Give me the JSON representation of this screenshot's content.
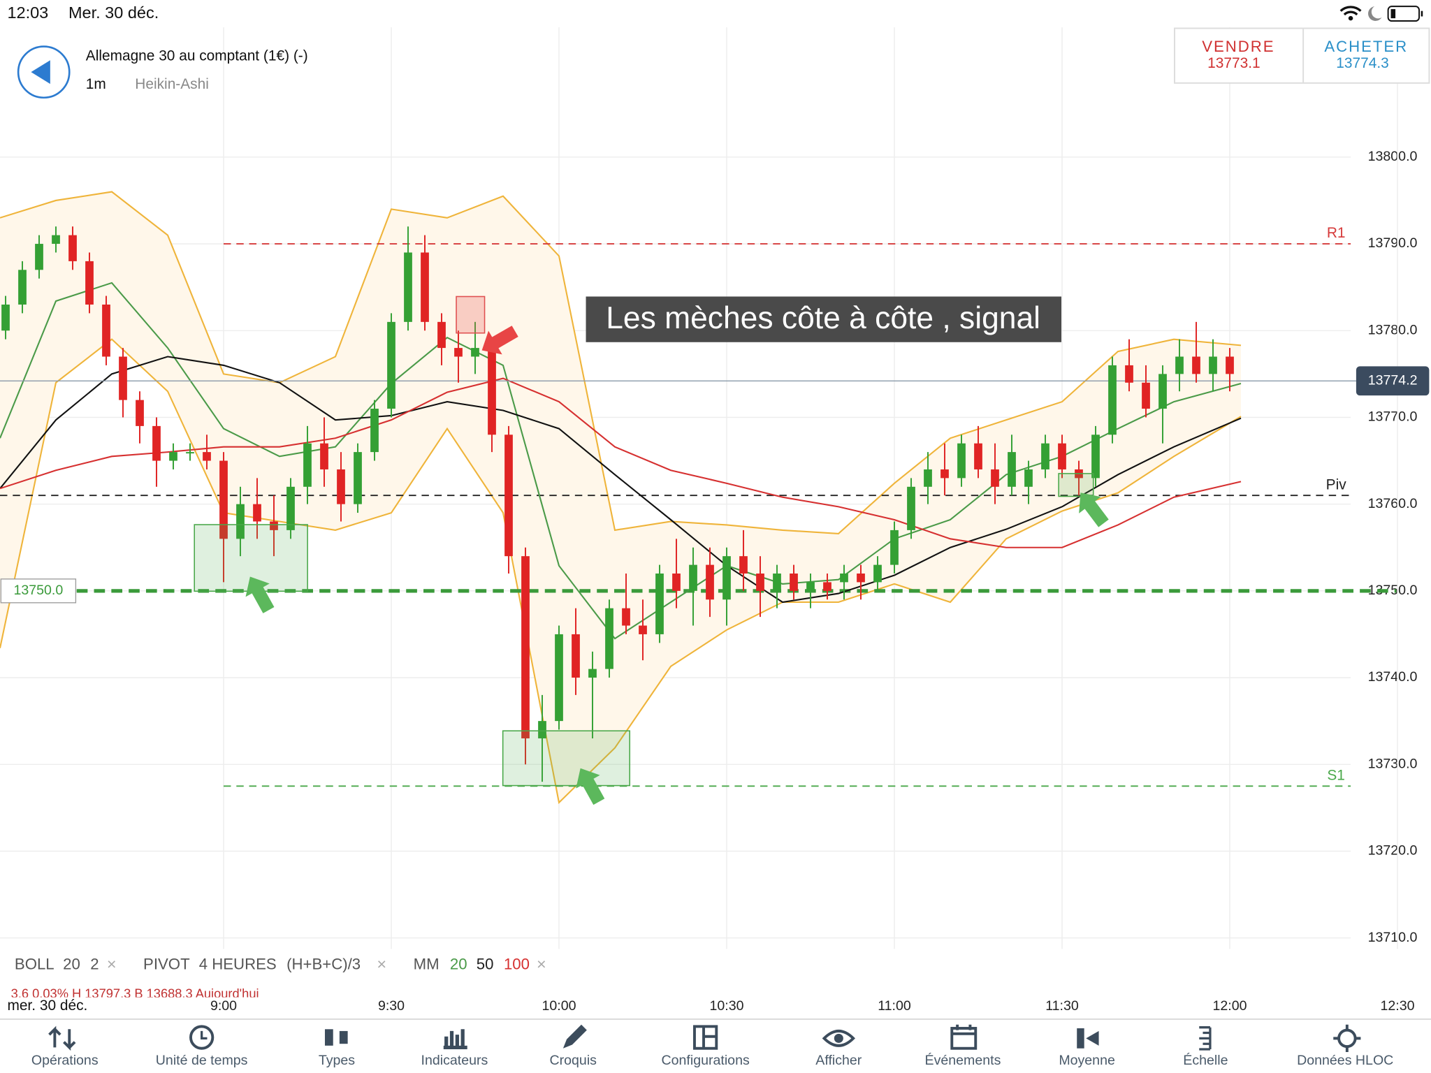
{
  "ui": {
    "status_time": "12:03",
    "status_date": "Mer. 30 déc.",
    "instrument": "Allemagne 30 au comptant (1€) (-)",
    "timeframe": "1m",
    "chart_style": "Heikin-Ashi",
    "sell_label": "VENDRE",
    "sell_price": "13773.1",
    "buy_label": "ACHETER",
    "buy_price": "13774.3",
    "annotation": "Les mèches côte à côte , signal",
    "legend": {
      "boll": "BOLL",
      "boll_period": "20",
      "boll_dev": "2",
      "pivot": "PIVOT",
      "pivot_period": "4 HEURES",
      "pivot_formula": "(H+B+C)/3",
      "mm": "MM"
    },
    "info_row": "3.6    0.03%    H 13797.3    B 13688.3    Aujourd'hui",
    "date_label": "mer. 30 déc.",
    "toolbar": [
      "Opérations",
      "Unité de temps",
      "Types",
      "Indicateurs",
      "Croquis",
      "Configurations",
      "Afficher",
      "Événements",
      "Moyenne",
      "Échelle",
      "Données HLOC"
    ]
  },
  "chart_data": {
    "type": "candlestick",
    "up_color": "#34a034",
    "down_color": "#e02424",
    "xlim": [
      500,
      756
    ],
    "xticks": [
      {
        "value": 540,
        "label": "9:00"
      },
      {
        "value": 570,
        "label": "9:30"
      },
      {
        "value": 600,
        "label": "10:00"
      },
      {
        "value": 630,
        "label": "10:30"
      },
      {
        "value": 660,
        "label": "11:00"
      },
      {
        "value": 690,
        "label": "11:30"
      },
      {
        "value": 720,
        "label": "12:00"
      },
      {
        "value": 750,
        "label": "12:30"
      }
    ],
    "ylim": [
      13704,
      13818
    ],
    "yticks": [
      {
        "value": 13800,
        "label": "13800.0"
      },
      {
        "value": 13790,
        "label": "13790.0"
      },
      {
        "value": 13780,
        "label": "13780.0"
      },
      {
        "value": 13770,
        "label": "13770.0"
      },
      {
        "value": 13760,
        "label": "13760.0"
      },
      {
        "value": 13750,
        "label": "13750.0"
      },
      {
        "value": 13740,
        "label": "13740.0"
      },
      {
        "value": 13730,
        "label": "13730.0"
      },
      {
        "value": 13720,
        "label": "13720.0"
      },
      {
        "value": 13710,
        "label": "13710.0"
      }
    ],
    "grid": true,
    "candles": {
      "t": [
        501,
        504,
        507,
        510,
        513,
        516,
        519,
        522,
        525,
        528,
        531,
        534,
        537,
        540,
        543,
        546,
        549,
        552,
        555,
        558,
        561,
        564,
        567,
        570,
        573,
        576,
        579,
        582,
        585,
        588,
        591,
        594,
        597,
        600,
        603,
        606,
        609,
        612,
        615,
        618,
        621,
        624,
        627,
        630,
        633,
        636,
        639,
        642,
        645,
        648,
        651,
        654,
        657,
        660,
        663,
        666,
        669,
        672,
        675,
        678,
        681,
        684,
        687,
        690,
        693,
        696,
        699,
        702,
        705,
        708,
        711,
        714,
        717,
        720
      ],
      "open": [
        13780,
        13783,
        13787,
        13790,
        13791,
        13788,
        13783,
        13777,
        13772,
        13769,
        13765,
        13766,
        13766,
        13765,
        13756,
        13760,
        13758,
        13757,
        13762,
        13767,
        13764,
        13760,
        13766,
        13771,
        13781,
        13789,
        13781,
        13778,
        13777,
        13778,
        13768,
        13754,
        13733,
        13735,
        13745,
        13740,
        13741,
        13748,
        13746,
        13745,
        13752,
        13750,
        13753,
        13749,
        13754,
        13752,
        13750,
        13752,
        13750,
        13751,
        13751,
        13752,
        13751,
        13753,
        13757,
        13762,
        13764,
        13763,
        13767,
        13764,
        13762,
        13762,
        13764,
        13767,
        13764,
        13763,
        13768,
        13776,
        13774,
        13771,
        13775,
        13777,
        13775,
        13777
      ],
      "high": [
        13784,
        13788,
        13791,
        13792,
        13792,
        13789,
        13784,
        13778,
        13773,
        13770,
        13767,
        13767,
        13768,
        13766,
        13762,
        13763,
        13761,
        13763,
        13769,
        13770,
        13766,
        13767,
        13772,
        13782,
        13792,
        13791,
        13782,
        13780,
        13781,
        13779,
        13769,
        13755,
        13738,
        13746,
        13748,
        13743,
        13749,
        13752,
        13749,
        13753,
        13756,
        13755,
        13755,
        13755,
        13757,
        13754,
        13753,
        13753,
        13752,
        13752,
        13753,
        13753,
        13754,
        13758,
        13763,
        13766,
        13767,
        13768,
        13769,
        13767,
        13768,
        13765,
        13768,
        13768,
        13765,
        13769,
        13777,
        13779,
        13776,
        13776,
        13779,
        13781,
        13779,
        13778
      ],
      "low": [
        13779,
        13782,
        13786,
        13789,
        13787,
        13782,
        13776,
        13770,
        13767,
        13762,
        13764,
        13765,
        13764,
        13751,
        13754,
        13756,
        13754,
        13756,
        13760,
        13762,
        13758,
        13759,
        13765,
        13770,
        13780,
        13780,
        13776,
        13774,
        13775,
        13766,
        13752,
        13730,
        13728,
        13734,
        13738,
        13733,
        13740,
        13745,
        13742,
        13744,
        13748,
        13746,
        13747,
        13746,
        13750,
        13747,
        13748,
        13749,
        13748,
        13749,
        13749,
        13749,
        13750,
        13752,
        13756,
        13760,
        13761,
        13762,
        13763,
        13760,
        13761,
        13760,
        13763,
        13763,
        13761,
        13762,
        13767,
        13773,
        13770,
        13767,
        13773,
        13774,
        13773,
        13773
      ],
      "close": [
        13783,
        13787,
        13790,
        13791,
        13788,
        13783,
        13777,
        13772,
        13769,
        13765,
        13766,
        13766,
        13765,
        13756,
        13760,
        13758,
        13757,
        13762,
        13767,
        13764,
        13760,
        13766,
        13771,
        13781,
        13789,
        13781,
        13778,
        13777,
        13778,
        13768,
        13754,
        13733,
        13735,
        13745,
        13740,
        13741,
        13748,
        13746,
        13745,
        13752,
        13750,
        13753,
        13749,
        13754,
        13752,
        13750,
        13752,
        13750,
        13751,
        13750,
        13752,
        13751,
        13753,
        13757,
        13762,
        13764,
        13763,
        13767,
        13764,
        13762,
        13766,
        13764,
        13767,
        13764,
        13763,
        13768,
        13776,
        13774,
        13771,
        13775,
        13777,
        13775,
        13777,
        13775
      ]
    },
    "line_x": [
      500,
      510,
      520,
      530,
      540,
      550,
      560,
      570,
      580,
      590,
      600,
      610,
      620,
      630,
      640,
      650,
      660,
      670,
      680,
      690,
      700,
      710,
      722
    ],
    "bollinger": {
      "color": "#efb43a",
      "fill": "#fff7ea",
      "upper": [
        13793,
        13795,
        13796,
        13791,
        13775,
        13774,
        13777,
        13794,
        13793,
        13795.5,
        13788.6,
        13757,
        13758,
        13757.6,
        13757,
        13756.6,
        13762.4,
        13767.6,
        13769.7,
        13771.8,
        13777.6,
        13779,
        13778.3
      ],
      "lower": [
        13743.4,
        13774,
        13779,
        13773,
        13759,
        13758,
        13757,
        13759,
        13768.7,
        13759,
        13725.6,
        13731.9,
        13741.3,
        13745.5,
        13748.7,
        13748.7,
        13750.8,
        13748.7,
        13756,
        13759.2,
        13761.3,
        13765.5,
        13770.1
      ]
    },
    "series": [
      {
        "name": "20",
        "color": "#4a9a48",
        "values": [
          13767.6,
          13783.4,
          13785.5,
          13778,
          13768.7,
          13765.5,
          13766.6,
          13773.9,
          13779.2,
          13776,
          13752.9,
          13744.5,
          13748.7,
          13752.9,
          13750.8,
          13751.3,
          13756,
          13758.2,
          13763.4,
          13765.5,
          13768.7,
          13771.8,
          13773.9
        ]
      },
      {
        "name": "50",
        "color": "#111111",
        "values": [
          13761.8,
          13769.7,
          13775,
          13777,
          13776,
          13774,
          13769.7,
          13770.2,
          13771.8,
          13770.8,
          13768.7,
          13763.4,
          13758.2,
          13752.9,
          13748.7,
          13749.7,
          13751.8,
          13755,
          13757.1,
          13759.7,
          13763.4,
          13766.6,
          13769.9
        ]
      },
      {
        "name": "100",
        "color": "#d63030",
        "values": [
          13761.8,
          13763.9,
          13765.5,
          13766,
          13766.6,
          13766.6,
          13767.6,
          13769.7,
          13772.9,
          13774.5,
          13771.8,
          13766.6,
          13763.9,
          13762.4,
          13760.8,
          13759.7,
          13758.2,
          13756,
          13755,
          13755,
          13757.6,
          13760.8,
          13762.6
        ]
      }
    ],
    "levels": [
      {
        "name": "R1",
        "value": 13790,
        "color": "#d63a3a"
      },
      {
        "name": "Piv",
        "value": 13761,
        "color": "#222222"
      },
      {
        "name": "S1",
        "value": 13727.5,
        "color": "#4aa84a"
      }
    ],
    "support": {
      "value": 13750,
      "label": "13750.0",
      "color": "#3a9a3a"
    },
    "last_price": {
      "value": 13774.2,
      "color": "#3b4b5f"
    }
  }
}
